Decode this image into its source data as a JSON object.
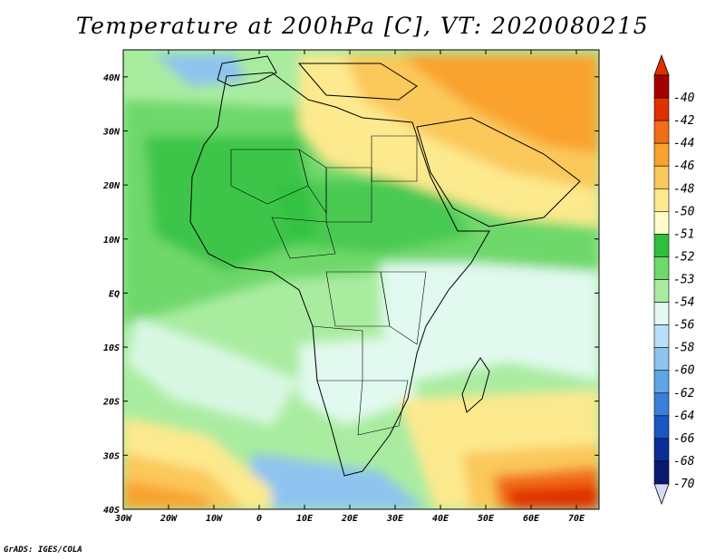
{
  "title": "Temperature at 200hPa [C], VT: 2020080215",
  "footer": "GrADS: IGES/COLA",
  "map": {
    "lon_range": [
      -30,
      75
    ],
    "lat_range": [
      -40,
      45
    ],
    "x_ticks": [
      {
        "value": -30,
        "label": "30W"
      },
      {
        "value": -20,
        "label": "20W"
      },
      {
        "value": -10,
        "label": "10W"
      },
      {
        "value": 0,
        "label": "0"
      },
      {
        "value": 10,
        "label": "10E"
      },
      {
        "value": 20,
        "label": "20E"
      },
      {
        "value": 30,
        "label": "30E"
      },
      {
        "value": 40,
        "label": "40E"
      },
      {
        "value": 50,
        "label": "50E"
      },
      {
        "value": 60,
        "label": "60E"
      },
      {
        "value": 70,
        "label": "70E"
      }
    ],
    "y_ticks": [
      {
        "value": 40,
        "label": "40N"
      },
      {
        "value": 30,
        "label": "30N"
      },
      {
        "value": 20,
        "label": "20N"
      },
      {
        "value": 10,
        "label": "10N"
      },
      {
        "value": 0,
        "label": "EQ"
      },
      {
        "value": -10,
        "label": "10S"
      },
      {
        "value": -20,
        "label": "20S"
      },
      {
        "value": -30,
        "label": "30S"
      },
      {
        "value": -40,
        "label": "40S"
      }
    ]
  },
  "colorbar": {
    "levels": [
      {
        "label": "-40",
        "color": "#a50000"
      },
      {
        "label": "-42",
        "color": "#e03000"
      },
      {
        "label": "-44",
        "color": "#f26d18"
      },
      {
        "label": "-46",
        "color": "#f9a32e"
      },
      {
        "label": "-48",
        "color": "#fbc85a"
      },
      {
        "label": "-50",
        "color": "#fde98e"
      },
      {
        "label": "-51",
        "color": "#fefcc8"
      },
      {
        "label": "-52",
        "color": "#2fbf3f"
      },
      {
        "label": "-53",
        "color": "#6ed86b"
      },
      {
        "label": "-54",
        "color": "#a9eca0"
      },
      {
        "label": "-56",
        "color": "#e1f9ef"
      },
      {
        "label": "-58",
        "color": "#b8e0f6"
      },
      {
        "label": "-60",
        "color": "#8ec4ef"
      },
      {
        "label": "-62",
        "color": "#5ea4e6"
      },
      {
        "label": "-64",
        "color": "#3a7fd9"
      },
      {
        "label": "-66",
        "color": "#1a57c2"
      },
      {
        "label": "-68",
        "color": "#0a2f98"
      },
      {
        "label": "-70",
        "color": "#0a1a72"
      }
    ],
    "top_color": "#e03000",
    "bottom_color": "#d9d9f7"
  }
}
